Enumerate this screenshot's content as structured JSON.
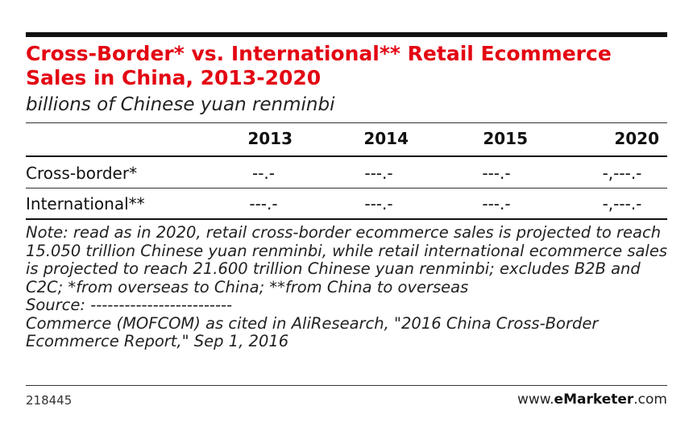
{
  "title": "Cross-Border* vs. International** Retail Ecommerce Sales in China, 2013-2020",
  "subtitle": "billions of Chinese yuan renminbi",
  "chart_data": {
    "type": "table",
    "columns": [
      "2013",
      "2014",
      "2015",
      "2020"
    ],
    "rows": [
      {
        "label": "Cross-border*",
        "values": [
          "--.-",
          "---.-",
          "---.-",
          "-,---.-"
        ]
      },
      {
        "label": "International**",
        "values": [
          "---.-",
          "---.-",
          "---.-",
          "-,---.-"
        ]
      }
    ]
  },
  "note": {
    "text": "Note: read as in 2020, retail cross-border ecommerce sales is projected to reach 15.050 trillion Chinese yuan renminbi, while retail international ecommerce sales is projected to reach 21.600 trillion Chinese yuan renminbi; excludes B2B and C2C; *from overseas to China; **from China to overseas",
    "source": "Source: -------------------------",
    "citation": "Commerce (MOFCOM) as cited in AliResearch, \"2016 China Cross-Border Ecommerce Report,\" Sep 1, 2016"
  },
  "footer": {
    "chart_id": "218445",
    "brand_prefix": "www.",
    "brand_bold": "eMarketer",
    "brand_suffix": ".com"
  },
  "colors": {
    "title": "#e30613",
    "rules": "#111111"
  }
}
